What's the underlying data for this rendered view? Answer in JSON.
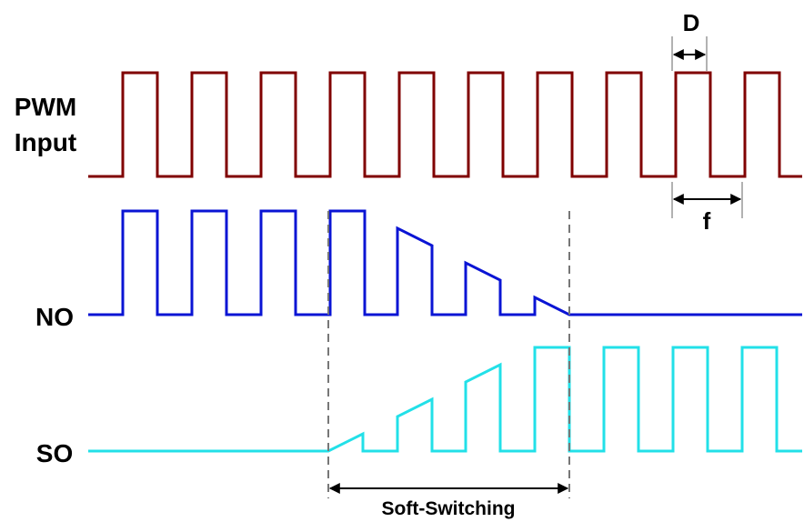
{
  "signals": {
    "pwm": {
      "label_line1": "PWM",
      "label_line2": "Input",
      "color": "#800000"
    },
    "no": {
      "label": "NO",
      "color": "#0a14d4"
    },
    "so": {
      "label": "SO",
      "color": "#22e0e8"
    }
  },
  "annotations": {
    "duty": "D",
    "frequency": "f",
    "soft_switching": "Soft-Switching"
  },
  "colors": {
    "divider": "#777777",
    "arrow": "#000000",
    "text": "#000000"
  }
}
